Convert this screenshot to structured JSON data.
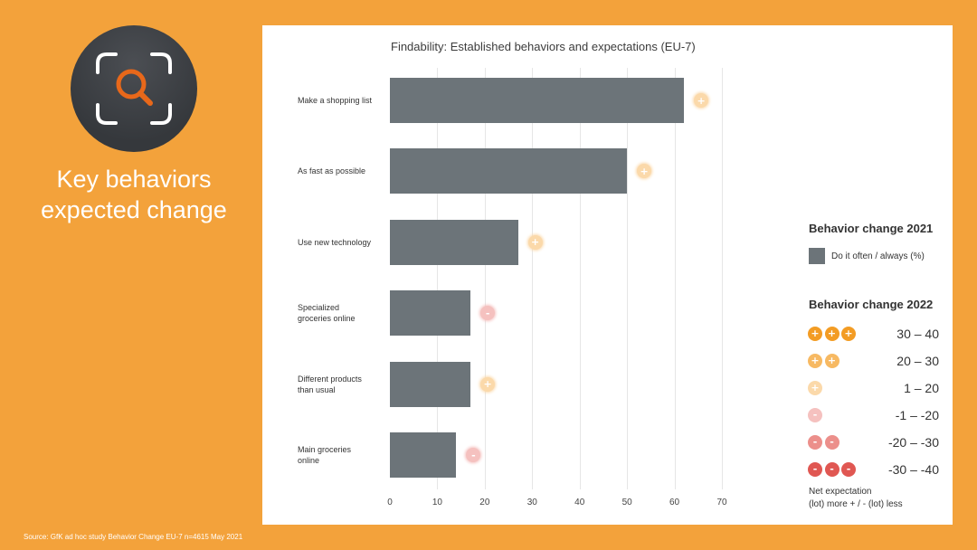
{
  "slide": {
    "heading": {
      "line1": "Key behaviors",
      "line2": "expected change"
    },
    "icon": "magnifier-search-icon",
    "source": "Source: GfK ad hoc study Behavior Change EU-7 n=4615 May 2021"
  },
  "colors": {
    "background": "#F3A23B",
    "panel": "#FFFFFF",
    "icon_circle": "#3A3D42",
    "icon_accent": "#E8681A",
    "bar": "#6C7479",
    "grid": "#E6E6E6"
  },
  "chart_data": {
    "type": "bar",
    "orientation": "horizontal",
    "title": "Findability: Established behaviors and expectations (EU-7)",
    "categories": [
      "Make a shopping list",
      "As fast as possible",
      "Use new technology",
      "Specialized\ngroceries online",
      "Different products\nthan usual",
      "Main groceries\nonline"
    ],
    "series": [
      {
        "name": "Do it often / always (%)",
        "values": [
          62,
          50,
          27,
          17,
          17,
          14
        ]
      }
    ],
    "expectation_level": [
      2,
      2,
      2,
      3,
      2,
      3
    ],
    "xlim": [
      0,
      70
    ],
    "xticks": [
      0,
      10,
      20,
      30,
      40,
      50,
      60,
      70
    ],
    "grid": true,
    "legend_placement": "right",
    "legend_2021": {
      "title": "Behavior change 2021"
    },
    "legend_2022": {
      "title": "Behavior change 2022",
      "items": [
        {
          "sign": "+",
          "count": 3,
          "range": "30 – 40",
          "color": "#F39C24"
        },
        {
          "sign": "+",
          "count": 2,
          "range": "20 – 30",
          "color": "#F7B962"
        },
        {
          "sign": "+",
          "count": 1,
          "range": "1 – 20",
          "color": "#FBD9AA"
        },
        {
          "sign": "-",
          "count": 1,
          "range": "-1 – -20",
          "color": "#F5C1BF"
        },
        {
          "sign": "-",
          "count": 2,
          "range": "-20 – -30",
          "color": "#EC8F8B"
        },
        {
          "sign": "-",
          "count": 3,
          "range": "-30 – -40",
          "color": "#E05752"
        }
      ],
      "note": [
        "Net expectation",
        "(lot) more + / - (lot) less"
      ]
    }
  }
}
